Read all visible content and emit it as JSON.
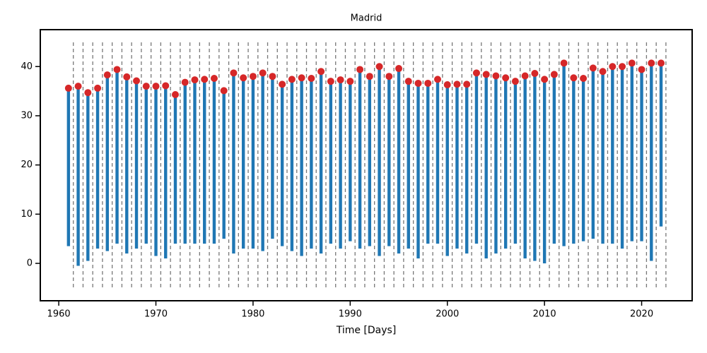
{
  "chart_data": {
    "type": "range-scatter",
    "title": "Madrid",
    "x_label": "Time [Days]",
    "x": [
      1961,
      1962,
      1963,
      1964,
      1965,
      1966,
      1967,
      1968,
      1969,
      1970,
      1971,
      1972,
      1973,
      1974,
      1975,
      1976,
      1977,
      1978,
      1979,
      1980,
      1981,
      1982,
      1983,
      1984,
      1985,
      1986,
      1987,
      1988,
      1989,
      1990,
      1991,
      1992,
      1993,
      1994,
      1995,
      1996,
      1997,
      1998,
      1999,
      2000,
      2001,
      2002,
      2003,
      2004,
      2005,
      2006,
      2007,
      2008,
      2009,
      2010,
      2011,
      2012,
      2013,
      2014,
      2015,
      2016,
      2017,
      2018,
      2019,
      2020,
      2021,
      2022
    ],
    "series": [
      {
        "color": "#1f77b4",
        "values": [
          3.5,
          -0.5,
          0.5,
          3,
          2.5,
          4,
          2,
          3,
          4,
          1.5,
          1,
          4,
          4,
          4,
          4,
          4,
          5,
          2,
          3,
          3,
          2.5,
          5,
          3.5,
          2.5,
          1.5,
          3,
          2,
          4,
          3,
          4.5,
          3,
          3.5,
          1.5,
          3.5,
          2,
          3,
          1,
          4,
          4,
          1.5,
          3,
          2,
          4,
          1,
          2,
          3,
          4,
          1,
          0.5,
          0,
          4,
          3.5,
          4,
          4.5,
          5,
          4,
          4,
          3,
          4.5,
          4.5,
          0.5,
          7.5
        ]
      },
      {
        "color": "#d62728",
        "values": [
          35.6,
          36.0,
          34.7,
          35.6,
          38.3,
          39.4,
          37.9,
          37.1,
          36.0,
          36.0,
          36.1,
          34.3,
          36.8,
          37.3,
          37.4,
          37.6,
          35.1,
          38.7,
          37.7,
          38.0,
          38.7,
          38.0,
          36.4,
          37.4,
          37.7,
          37.6,
          39.0,
          37.0,
          37.3,
          37.0,
          39.4,
          38.0,
          40.0,
          38.0,
          39.6,
          37.0,
          36.6,
          36.6,
          37.4,
          36.3,
          36.4,
          36.4,
          38.7,
          38.4,
          38.1,
          37.7,
          37.0,
          38.1,
          38.6,
          37.4,
          38.4,
          40.7,
          37.7,
          37.6,
          39.7,
          39.0,
          40.0,
          40.0,
          40.7,
          39.4,
          40.7,
          40.7
        ]
      }
    ],
    "xlim": [
      1958.1,
      2025.2
    ],
    "xticks": [
      1960,
      1970,
      1980,
      1990,
      2000,
      2010,
      2020
    ],
    "ylim": [
      -7.6,
      47.5
    ],
    "yticks": [
      0,
      10,
      20,
      30,
      40
    ]
  }
}
